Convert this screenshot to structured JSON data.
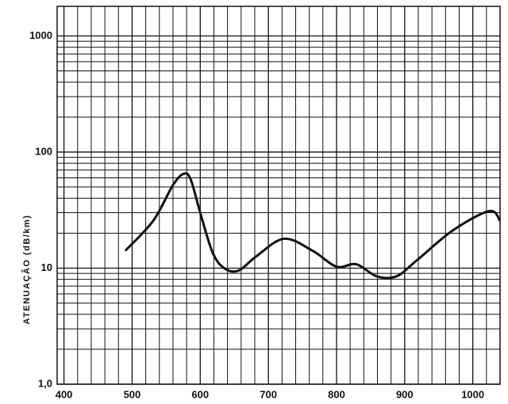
{
  "chart_data": {
    "type": "line",
    "ylabel": "ATENUAÇÃO (dB/km)",
    "log_y": true,
    "grid": true,
    "xlim": [
      390,
      1040
    ],
    "xticks": [
      400,
      500,
      600,
      700,
      800,
      900,
      1000
    ],
    "ylim": [
      1,
      1800
    ],
    "yticks": [
      {
        "value": 1,
        "label": "1,0"
      },
      10,
      100,
      1000
    ],
    "x": [
      490,
      531,
      560,
      576,
      586,
      600,
      618,
      635,
      656,
      682,
      723,
      765,
      800,
      829,
      859,
      888,
      918,
      971,
      1024,
      1040
    ],
    "series": [
      {
        "name": null,
        "color": "#111111",
        "values": [
          14.1,
          25.6,
          52,
          65,
          58,
          30,
          13.7,
          10,
          9.5,
          12.6,
          17.9,
          14.1,
          10.3,
          10.8,
          8.5,
          8.5,
          11.7,
          21.2,
          31,
          25.6
        ]
      }
    ]
  }
}
